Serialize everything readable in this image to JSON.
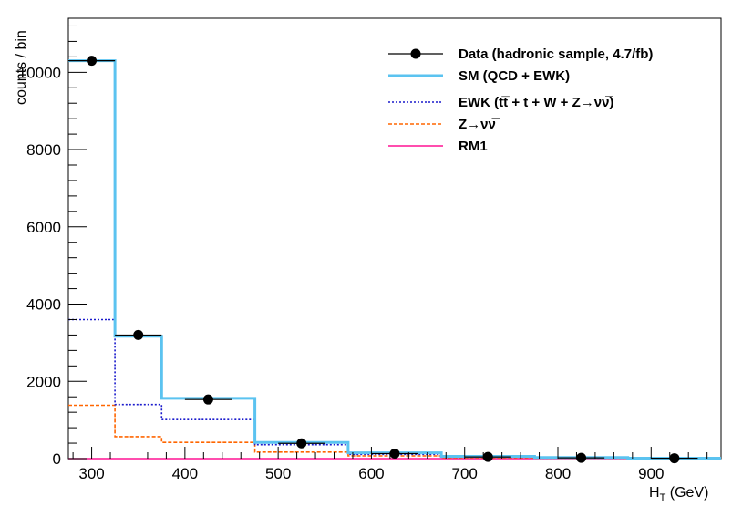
{
  "chart_data": {
    "type": "histogram",
    "ylabel": "counts / bin",
    "xlabel": "H",
    "xlabel_sub": "T",
    "xlabel_unit": " (GeV)",
    "xlim": [
      275,
      975
    ],
    "ylim": [
      0,
      11400
    ],
    "x_ticks": [
      300,
      400,
      500,
      600,
      700,
      800,
      900
    ],
    "y_ticks": [
      0,
      2000,
      4000,
      6000,
      8000,
      10000
    ],
    "bin_edges": [
      275,
      325,
      375,
      475,
      575,
      675,
      775,
      875,
      975
    ],
    "series": [
      {
        "name": "Data (hadronic sample, 4.7/fb)",
        "style": "markers",
        "color": "#000000",
        "x": [
          300,
          350,
          425,
          525,
          625,
          725,
          825,
          925
        ],
        "values": [
          10300,
          3200,
          1530,
          395,
          130,
          45,
          20,
          10
        ]
      },
      {
        "name": "SM (QCD + EWK)",
        "style": "step-solid",
        "color": "#5bc3f0",
        "values": [
          10300,
          3170,
          1560,
          420,
          150,
          60,
          28,
          12
        ]
      },
      {
        "name": "EWK (tt̅ + t + W + Z→νν̅)",
        "style": "step-dotted",
        "color": "#1a1acc",
        "values": [
          3600,
          1400,
          1010,
          360,
          110,
          40,
          17,
          8
        ]
      },
      {
        "name": "Z→νν̅",
        "style": "step-dashed",
        "color": "#ff6600",
        "values": [
          1380,
          570,
          420,
          170,
          70,
          25,
          10,
          5
        ]
      },
      {
        "name": "RM1",
        "style": "step-solid",
        "color": "#ff1493",
        "values": [
          0,
          0,
          0,
          0,
          0,
          0,
          0,
          0
        ]
      }
    ],
    "legend_position": "top-right",
    "grid": false
  }
}
